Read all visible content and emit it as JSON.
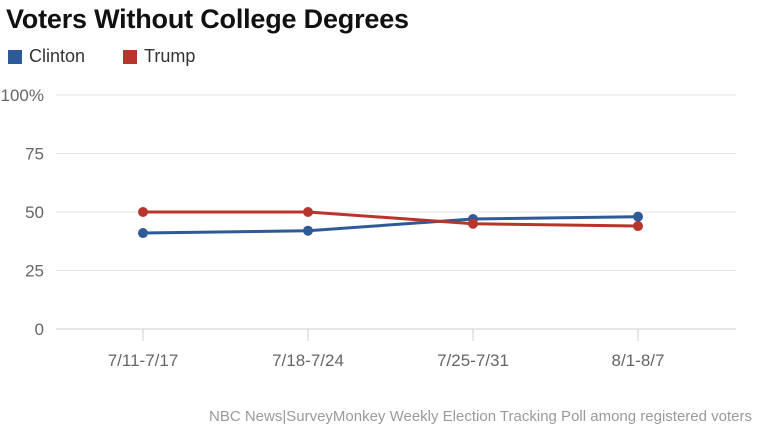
{
  "chart_data": {
    "type": "line",
    "title": "Voters Without College Degrees",
    "categories": [
      "7/11-7/17",
      "7/18-7/24",
      "7/25-7/31",
      "8/1-8/7"
    ],
    "series": [
      {
        "name": "Clinton",
        "color": "#2e5a97",
        "values": [
          41,
          42,
          47,
          48
        ]
      },
      {
        "name": "Trump",
        "color": "#b8352c",
        "values": [
          50,
          50,
          45,
          44
        ]
      }
    ],
    "y_ticks": [
      "0",
      "25",
      "50",
      "75",
      "100%"
    ],
    "ylim": [
      0,
      100
    ],
    "grid": true,
    "legend_position": "top-left",
    "source": "NBC News|SurveyMonkey Weekly Election Tracking Poll among registered voters"
  }
}
